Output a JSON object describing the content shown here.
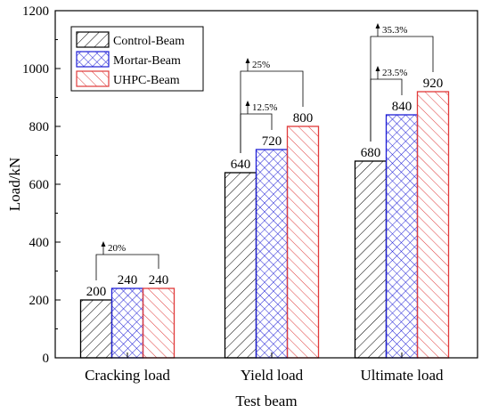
{
  "chart_data": {
    "type": "bar",
    "categories": [
      "Cracking load",
      "Yield load",
      "Ultimate load"
    ],
    "series": [
      {
        "name": "Control-Beam",
        "values": [
          200,
          640,
          680
        ],
        "color": "#000000",
        "pattern": "diag-right"
      },
      {
        "name": "Mortar-Beam",
        "values": [
          240,
          720,
          840
        ],
        "color": "#1f1fd6",
        "pattern": "crosshatch"
      },
      {
        "name": "UHPC-Beam",
        "values": [
          240,
          800,
          920
        ],
        "color": "#e03a3a",
        "pattern": "diag-left"
      }
    ],
    "data_labels": [
      [
        "200",
        "240",
        "240"
      ],
      [
        "640",
        "720",
        "800"
      ],
      [
        "680",
        "840",
        "920"
      ]
    ],
    "annotations": [
      {
        "category": 0,
        "from_series": 0,
        "to_series": 2,
        "text": "20%"
      },
      {
        "category": 1,
        "from_series": 0,
        "to_series": 1,
        "text": "12.5%"
      },
      {
        "category": 1,
        "from_series": 0,
        "to_series": 2,
        "text": "25%"
      },
      {
        "category": 2,
        "from_series": 0,
        "to_series": 1,
        "text": "23.5%"
      },
      {
        "category": 2,
        "from_series": 0,
        "to_series": 2,
        "text": "35.3%"
      }
    ],
    "xlabel": "Test beam",
    "ylabel": "Load/kN",
    "ylim": [
      0,
      1200
    ],
    "yticks": [
      "0",
      "200",
      "400",
      "600",
      "800",
      "1000",
      "1200"
    ],
    "grid": false,
    "legend_position": "top-left"
  }
}
